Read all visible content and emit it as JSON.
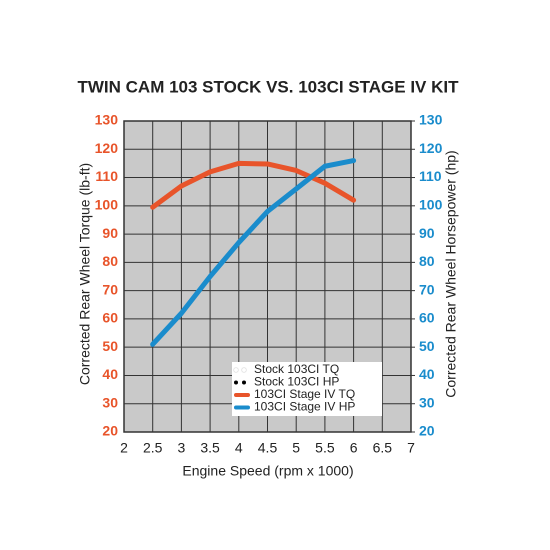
{
  "chart_data": {
    "type": "line",
    "title": "TWIN CAM 103 STOCK VS. 103CI STAGE IV KIT",
    "x_label": "Engine Speed (rpm x 1000)",
    "y_label": "Corrected Rear Wheel Torque (lb-ft)",
    "y2_label": "Corrected Rear Wheel Horsepower (hp)",
    "x": [
      2.5,
      3,
      3.5,
      4,
      4.5,
      5,
      5.5,
      6
    ],
    "xlim": [
      2,
      7
    ],
    "xticks": [
      2,
      2.5,
      3,
      3.5,
      4,
      4.5,
      5,
      5.5,
      6,
      6.5,
      7
    ],
    "ylim": [
      20,
      130
    ],
    "yticks": [
      20,
      30,
      40,
      50,
      60,
      70,
      80,
      90,
      100,
      110,
      120,
      130
    ],
    "y2lim": [
      20,
      130
    ],
    "y2ticks": [
      20,
      30,
      40,
      50,
      60,
      70,
      80,
      90,
      100,
      110,
      120,
      130
    ],
    "y_color": "#e8542a",
    "y2_color": "#1a8ccc",
    "grid": true,
    "background": "#c9c9c9",
    "series": [
      {
        "name": "Stock 103CI TQ",
        "color": "#ffffff",
        "line_style": "dotted",
        "values": [
          null,
          null,
          null,
          null,
          null,
          null,
          null,
          null
        ]
      },
      {
        "name": "Stock 103CI HP",
        "color": "#000000",
        "line_style": "dotted",
        "axis": "y2",
        "values": [
          null,
          null,
          null,
          null,
          null,
          null,
          null,
          null
        ]
      },
      {
        "name": "103CI Stage IV TQ",
        "color": "#e8542a",
        "line_style": "solid",
        "values": [
          99.5,
          107,
          112,
          115,
          114.8,
          112.5,
          108,
          102
        ]
      },
      {
        "name": "103CI Stage IV HP",
        "color": "#1a8ccc",
        "line_style": "solid",
        "axis": "y2",
        "values": [
          51,
          62,
          75,
          87,
          98,
          106,
          114,
          116
        ]
      }
    ]
  }
}
